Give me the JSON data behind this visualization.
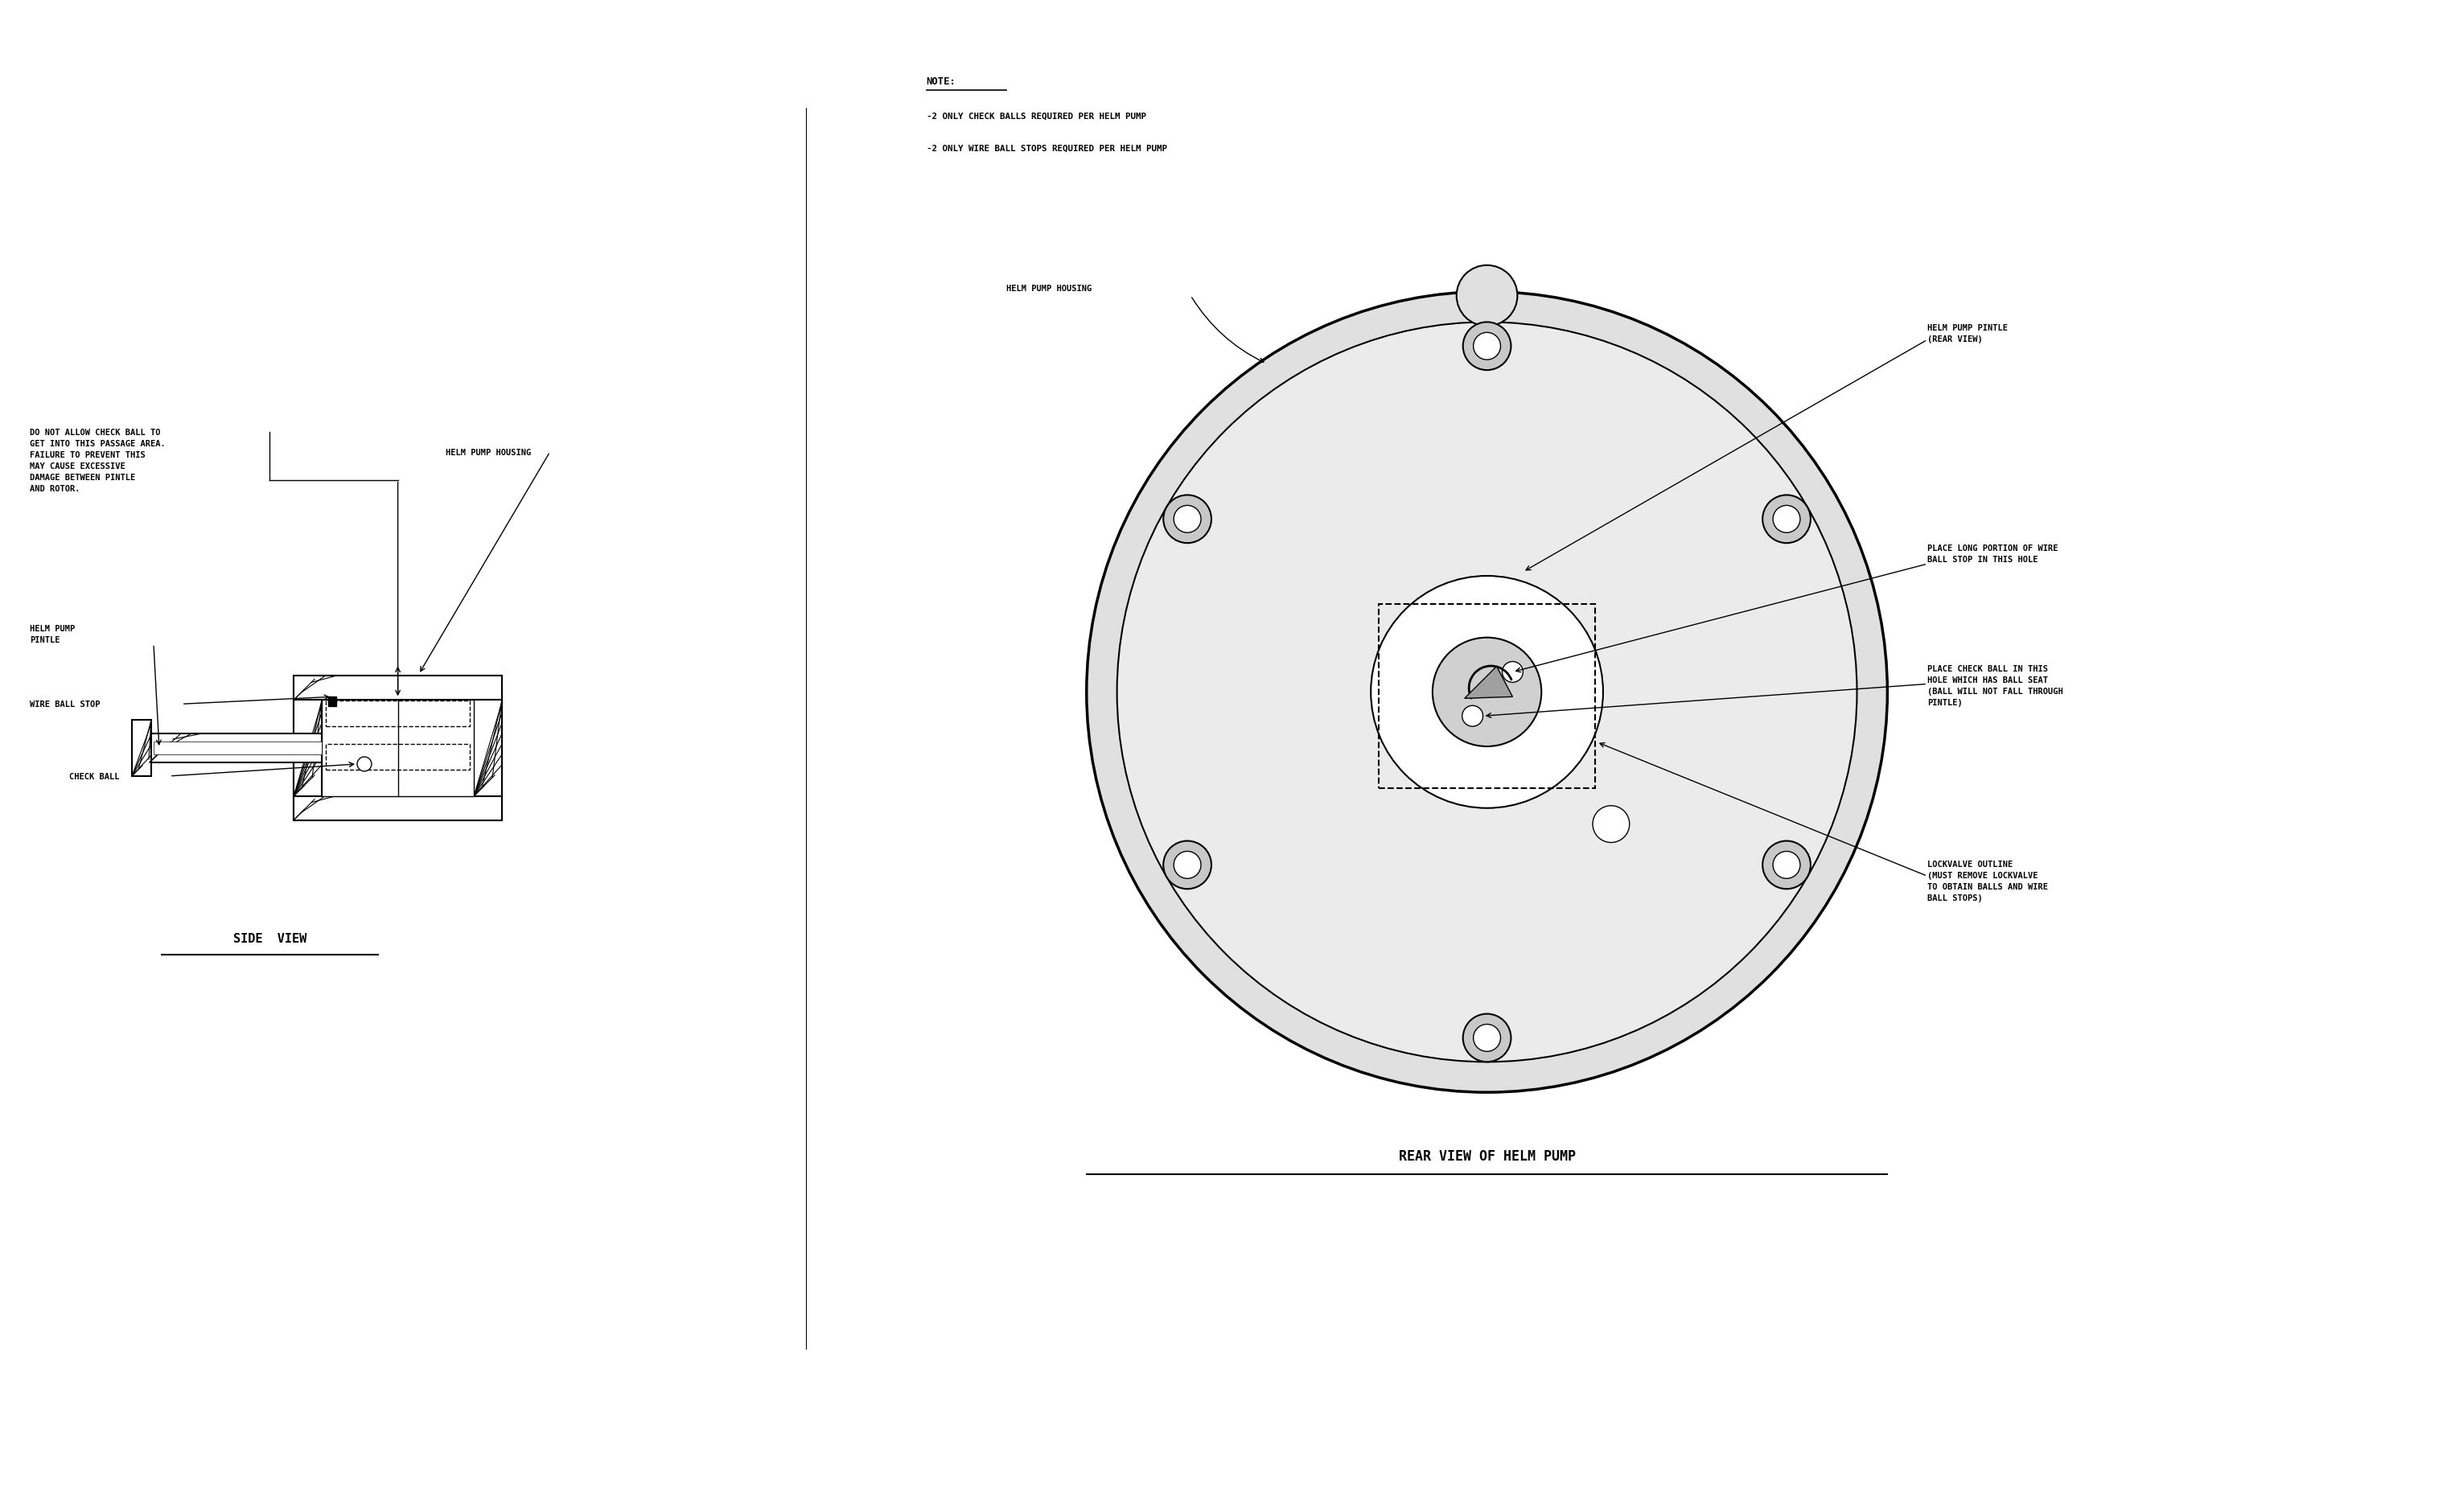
{
  "bg_color": "#ffffff",
  "line_color": "#000000",
  "title": "REAR VIEW OF HELM PUMP",
  "side_view_title": "SIDE  VIEW",
  "note_title": "NOTE:",
  "note_lines": [
    "-2 ONLY CHECK BALLS REQUIRED PER HELM PUMP",
    "-2 ONLY WIRE BALL STOPS REQUIRED PER HELM PUMP"
  ],
  "labels": {
    "do_not_allow": "DO NOT ALLOW CHECK BALL TO\nGET INTO THIS PASSAGE AREA.\nFAILURE TO PREVENT THIS\nMAY CAUSE EXCESSIVE\nDAMAGE BETWEEN PINTLE\nAND ROTOR.",
    "helm_pump_housing": "HELM PUMP HOUSING",
    "helm_pump_pintle_rear": "HELM PUMP PINTLE\n(REAR VIEW)",
    "place_long": "PLACE LONG PORTION OF WIRE\nBALL STOP IN THIS HOLE",
    "place_check": "PLACE CHECK BALL IN THIS\nHOLE WHICH HAS BALL SEAT\n(BALL WILL NOT FALL THROUGH\nPINTLE)",
    "lockvalve": "LOCKVALVE OUTLINE\n(MUST REMOVE LOCKVALVE\nTO OBTAIN BALLS AND WIRE\nBALL STOPS)",
    "helm_pump_pintle_left": "HELM PUMP\nPINTLE",
    "wire_ball_stop": "WIRE BALL STOP",
    "check_ball": "CHECK BALL"
  }
}
